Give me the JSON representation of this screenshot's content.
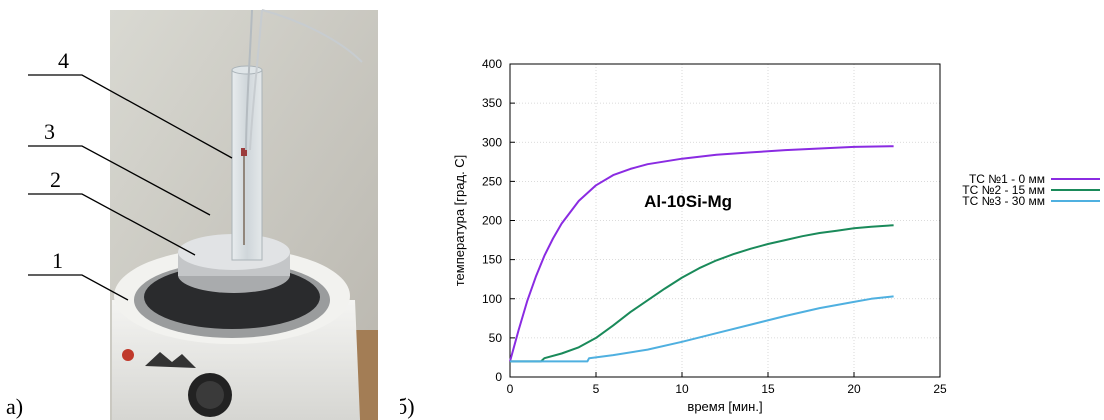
{
  "panel_a": {
    "letter": "а)",
    "callouts": [
      "1",
      "2",
      "3",
      "4"
    ]
  },
  "panel_b": {
    "letter": "б)"
  },
  "chart_data": {
    "type": "line",
    "xlabel": "время [мин.]",
    "ylabel": "температура [град. С]",
    "xlim": [
      0,
      25
    ],
    "ylim": [
      0,
      400
    ],
    "xticks": [
      0,
      5,
      10,
      15,
      20,
      25
    ],
    "yticks": [
      0,
      50,
      100,
      150,
      200,
      250,
      300,
      350,
      400
    ],
    "annotation": "Al-10Si-Mg",
    "grid": true,
    "legend_position": "outside-right",
    "series": [
      {
        "name": "ТС №1 - 0 мм",
        "color": "#8a2be2",
        "x": [
          0,
          0.5,
          1,
          1.5,
          2,
          2.5,
          3,
          4,
          5,
          6,
          7,
          8,
          10,
          12,
          14,
          16,
          18,
          20,
          22.3
        ],
        "y": [
          20,
          60,
          97,
          128,
          155,
          177,
          196,
          225,
          245,
          258,
          266,
          272,
          279,
          284,
          287,
          290,
          292,
          294,
          295
        ]
      },
      {
        "name": "ТС №2 - 15 мм",
        "color": "#1a8a5a",
        "x": [
          0,
          1.8,
          2,
          3,
          4,
          5,
          6,
          7,
          8,
          9,
          10,
          11,
          12,
          13,
          14,
          15,
          16,
          17,
          18,
          19,
          20,
          21,
          22.3
        ],
        "y": [
          20,
          20,
          24,
          30,
          38,
          50,
          66,
          83,
          98,
          113,
          127,
          139,
          149,
          157,
          164,
          170,
          175,
          180,
          184,
          187,
          190,
          192,
          194
        ]
      },
      {
        "name": "ТС №3 - 30 мм",
        "color": "#4fb0e0",
        "x": [
          0,
          4.5,
          4.6,
          6,
          8,
          10,
          12,
          14,
          16,
          18,
          20,
          21,
          22.3
        ],
        "y": [
          20,
          20,
          24,
          28,
          35,
          45,
          56,
          67,
          78,
          88,
          96,
          100,
          103
        ]
      }
    ]
  }
}
